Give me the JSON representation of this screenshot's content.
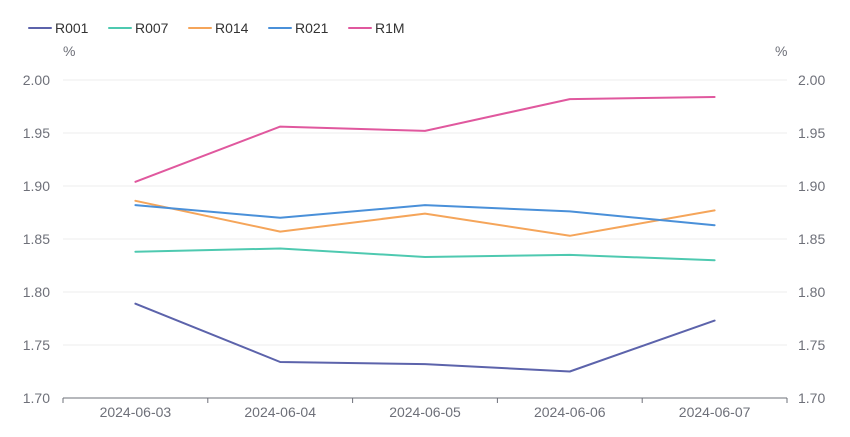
{
  "chart_data": {
    "type": "line",
    "categories": [
      "2024-06-03",
      "2024-06-04",
      "2024-06-05",
      "2024-06-06",
      "2024-06-07"
    ],
    "series": [
      {
        "name": "R001",
        "color": "#5c63ab",
        "values": [
          1.789,
          1.734,
          1.732,
          1.725,
          1.773
        ]
      },
      {
        "name": "R007",
        "color": "#4ec9b0",
        "values": [
          1.838,
          1.841,
          1.833,
          1.835,
          1.83
        ]
      },
      {
        "name": "R014",
        "color": "#f5a55a",
        "values": [
          1.886,
          1.857,
          1.874,
          1.853,
          1.877
        ]
      },
      {
        "name": "R021",
        "color": "#4a90d9",
        "values": [
          1.882,
          1.87,
          1.882,
          1.876,
          1.863
        ]
      },
      {
        "name": "R1M",
        "color": "#e0589e",
        "values": [
          1.904,
          1.956,
          1.952,
          1.982,
          1.984
        ]
      }
    ],
    "ylim": [
      1.7,
      2.0
    ],
    "yticks": [
      "1.70",
      "1.75",
      "1.80",
      "1.85",
      "1.90",
      "1.95",
      "2.00"
    ],
    "y_unit_left": "%",
    "y_unit_right": "%",
    "legend_position": "top-left",
    "grid": true
  }
}
